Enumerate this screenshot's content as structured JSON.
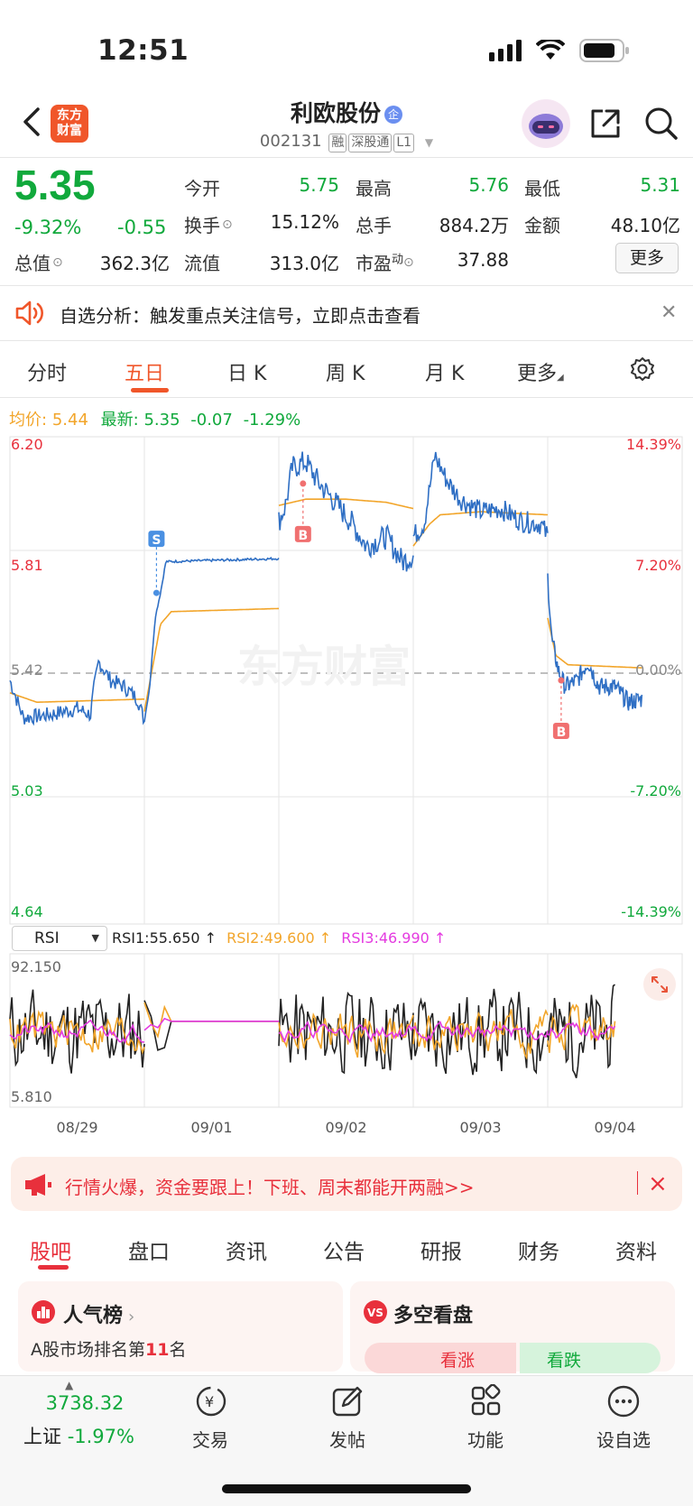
{
  "status_bar": {
    "time": "12:51"
  },
  "header": {
    "logo_line1": "东方",
    "logo_line2": "财富",
    "stock_name": "利欧股份",
    "badge_qi": "企",
    "stock_code": "002131",
    "tags": [
      "融",
      "深股通",
      "L1"
    ]
  },
  "quote": {
    "price": "5.35",
    "change_pct": "-9.32%",
    "change": "-0.55",
    "items": [
      {
        "label": "今开",
        "value": "5.75",
        "color": "#11a93c"
      },
      {
        "label": "最高",
        "value": "5.76",
        "color": "#11a93c"
      },
      {
        "label": "最低",
        "value": "5.31",
        "color": "#11a93c"
      },
      {
        "label": "换手",
        "value": "15.12%",
        "color": "#222222"
      },
      {
        "label": "总手",
        "value": "884.2万",
        "color": "#222222"
      },
      {
        "label": "金额",
        "value": "48.10亿",
        "color": "#222222"
      },
      {
        "label": "总值",
        "value": "362.3亿",
        "color": "#222222"
      },
      {
        "label": "流值",
        "value": "313.0亿",
        "color": "#222222"
      },
      {
        "label": "市盈",
        "value": "37.88",
        "color": "#222222"
      }
    ],
    "pe_superscript": "动",
    "more_label": "更多"
  },
  "notice": {
    "text": "自选分析：触发重点关注信号，立即点击查看"
  },
  "tabs": {
    "intraday": "分时",
    "five_day": "五日",
    "daily": "日 K",
    "weekly": "周 K",
    "monthly": "月 K",
    "more": "更多"
  },
  "chart_header": {
    "avg_label": "均价:",
    "avg_value": "5.44",
    "latest_label": "最新:",
    "latest_value": "5.35",
    "latest_change": "-0.07",
    "latest_pct": "-1.29%"
  },
  "chart_data": {
    "type": "line",
    "price_axis": [
      "6.20",
      "5.81",
      "5.42",
      "5.03",
      "4.64"
    ],
    "pct_axis": [
      "14.39%",
      "7.20%",
      "0.00%",
      "-7.20%",
      "-14.39%"
    ],
    "dates": [
      "08/29",
      "09/01",
      "09/02",
      "09/03",
      "09/04"
    ],
    "series": [
      {
        "color": "#2f6fc4"
      },
      {
        "color": "#f2a52a"
      }
    ],
    "markers": [
      "S",
      "B",
      "B"
    ],
    "watermark": "东方财富",
    "rsi": {
      "select": "RSI",
      "rsi1": "RSI1:55.650 ↑",
      "rsi2": "RSI2:49.600 ↑",
      "rsi3": "RSI3:46.990 ↑",
      "max": "92.150",
      "min": "5.810"
    }
  },
  "promo": {
    "text": "行情火爆，资金要跟上！下班、周末都能开两融>>"
  },
  "bottom_tabs": [
    "股吧",
    "盘口",
    "资讯",
    "公告",
    "研报",
    "财务",
    "资料"
  ],
  "cards": {
    "popularity_title": "人气榜",
    "popularity_sub_prefix": "A股市场排名第",
    "popularity_rank": "11",
    "popularity_sub_suffix": "名",
    "longshort_title": "多空看盘",
    "bull": "看涨",
    "bear": "看跌"
  },
  "bottom_nav": {
    "index_value": "3738.32",
    "index_name": "上证",
    "index_pct": "-1.97%",
    "trade": "交易",
    "post": "发帖",
    "functions": "功能",
    "watchlist": "设自选"
  }
}
